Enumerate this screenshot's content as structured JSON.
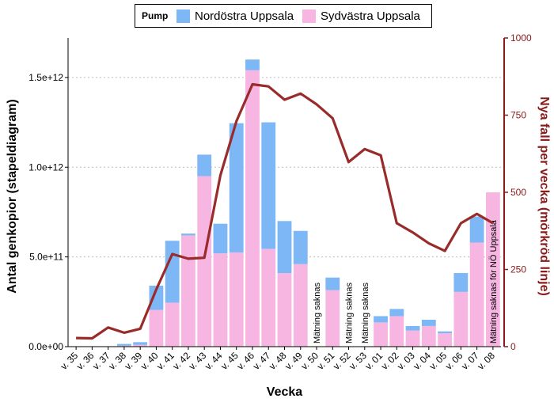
{
  "chart_data": {
    "type": "bar",
    "stacked": true,
    "legend": {
      "title": "Pump",
      "placement": "top"
    },
    "xlabel": "Vecka",
    "ylabel": "Antal genkopior (stapeldiagram)",
    "ylabel_right": "Nya fall per vecka (mörkröd linje)",
    "ylim": [
      0,
      1720000000000.0
    ],
    "ylim_right": [
      0,
      1000
    ],
    "y_ticks": [
      {
        "value": 0,
        "label": "0.0e+00"
      },
      {
        "value": 500000000000.0,
        "label": "5.0e+11"
      },
      {
        "value": 1000000000000.0,
        "label": "1.0e+12"
      },
      {
        "value": 1500000000000.0,
        "label": "1.5e+12"
      }
    ],
    "y_ticks_right": [
      {
        "value": 0,
        "label": "0"
      },
      {
        "value": 250,
        "label": "250"
      },
      {
        "value": 500,
        "label": "500"
      },
      {
        "value": 750,
        "label": "750"
      },
      {
        "value": 1000,
        "label": "1000"
      }
    ],
    "grid": true,
    "categories": [
      "v. 35",
      "v. 36",
      "v. 37",
      "v. 38",
      "v. 39",
      "v. 40",
      "v. 41",
      "v. 42",
      "v. 43",
      "v. 44",
      "v. 45",
      "v. 46",
      "v. 47",
      "v. 48",
      "v. 49",
      "v. 50",
      "v. 51",
      "v. 52",
      "v. 53",
      "v. 01",
      "v. 02",
      "v. 03",
      "v. 04",
      "v. 05",
      "v. 06",
      "v. 07",
      "v. 08"
    ],
    "series": [
      {
        "name": "Sydvästra Uppsala",
        "color": "#f7b6e2",
        "values": [
          0,
          0,
          0,
          5000000000.0,
          10000000000.0,
          205000000000.0,
          245000000000.0,
          620000000000.0,
          950000000000.0,
          520000000000.0,
          525000000000.0,
          1540000000000.0,
          545000000000.0,
          410000000000.0,
          460000000000.0,
          null,
          315000000000.0,
          null,
          null,
          135000000000.0,
          170000000000.0,
          90000000000.0,
          115000000000.0,
          75000000000.0,
          305000000000.0,
          580000000000.0,
          860000000000.0
        ]
      },
      {
        "name": "Nordöstra Uppsala",
        "color": "#7eb7f5",
        "values": [
          0,
          0,
          0,
          10000000000.0,
          15000000000.0,
          135000000000.0,
          345000000000.0,
          10000000000.0,
          120000000000.0,
          165000000000.0,
          720000000000.0,
          60000000000.0,
          705000000000.0,
          290000000000.0,
          185000000000.0,
          null,
          70000000000.0,
          null,
          null,
          35000000000.0,
          40000000000.0,
          25000000000.0,
          35000000000.0,
          10000000000.0,
          105000000000.0,
          145000000000.0,
          null
        ]
      }
    ],
    "line": {
      "color": "#992b2b",
      "axis": "right",
      "values": [
        28,
        27,
        62,
        45,
        58,
        185,
        300,
        285,
        288,
        555,
        730,
        850,
        843,
        800,
        820,
        785,
        740,
        598,
        640,
        620,
        400,
        370,
        335,
        310,
        400,
        430,
        400
      ]
    },
    "annotations": [
      {
        "category": "v. 50",
        "text": "Mätning saknas"
      },
      {
        "category": "v. 52",
        "text": "Mätning saknas"
      },
      {
        "category": "v. 53",
        "text": "Mätning saknas"
      },
      {
        "category": "v. 08",
        "text": "Mätning saknas för NÖ Uppsala"
      }
    ]
  }
}
